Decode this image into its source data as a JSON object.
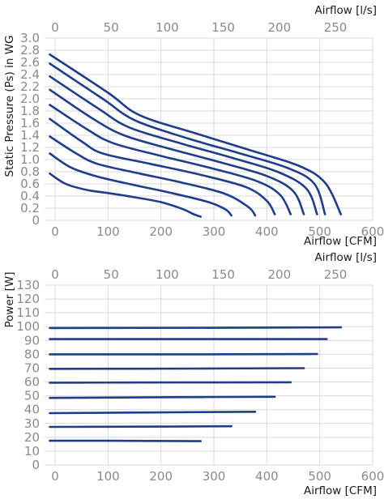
{
  "chart_data": [
    {
      "type": "line",
      "title": "",
      "xlabel": "Airflow [CFM]",
      "x2label": "Airflow [l/s]",
      "ylabel": "Static Pressure (Ps) in WG",
      "xlim": [
        -20,
        600
      ],
      "ylim": [
        0,
        3.0
      ],
      "x2lim": [
        -9.4,
        283.2
      ],
      "xticks": [
        "0",
        "100",
        "200",
        "300",
        "400",
        "500",
        "600"
      ],
      "x2ticks": [
        "0",
        "50",
        "100",
        "150",
        "200",
        "250"
      ],
      "yticks": [
        "0",
        "0.2",
        "0.4",
        "0.6",
        "0.8",
        "1.0",
        "1.2",
        "1.4",
        "1.6",
        "1.8",
        "2.0",
        "2.2",
        "2.4",
        "2.6",
        "2.8",
        "3.0"
      ],
      "x2tick_values": [
        0,
        50,
        100,
        150,
        200,
        250
      ],
      "grid": true,
      "series": [
        {
          "points": [
            [
              -10,
              0.77
            ],
            [
              20,
              0.6
            ],
            [
              60,
              0.5
            ],
            [
              100,
              0.45
            ],
            [
              150,
              0.38
            ],
            [
              200,
              0.3
            ],
            [
              240,
              0.19
            ],
            [
              262,
              0.1
            ],
            [
              275,
              0.06
            ]
          ]
        },
        {
          "points": [
            [
              -10,
              1.1
            ],
            [
              30,
              0.87
            ],
            [
              80,
              0.72
            ],
            [
              150,
              0.58
            ],
            [
              220,
              0.45
            ],
            [
              290,
              0.3
            ],
            [
              322,
              0.18
            ],
            [
              333,
              0.08
            ]
          ]
        },
        {
          "points": [
            [
              -10,
              1.38
            ],
            [
              40,
              1.1
            ],
            [
              80,
              0.93
            ],
            [
              160,
              0.77
            ],
            [
              240,
              0.62
            ],
            [
              320,
              0.44
            ],
            [
              365,
              0.22
            ],
            [
              378,
              0.08
            ]
          ]
        },
        {
          "points": [
            [
              -10,
              1.67
            ],
            [
              50,
              1.3
            ],
            [
              90,
              1.1
            ],
            [
              180,
              0.93
            ],
            [
              270,
              0.76
            ],
            [
              360,
              0.55
            ],
            [
              400,
              0.32
            ],
            [
              415,
              0.1
            ]
          ]
        },
        {
          "points": [
            [
              -10,
              1.9
            ],
            [
              60,
              1.5
            ],
            [
              110,
              1.27
            ],
            [
              200,
              1.06
            ],
            [
              290,
              0.87
            ],
            [
              380,
              0.65
            ],
            [
              425,
              0.42
            ],
            [
              445,
              0.1
            ]
          ]
        },
        {
          "points": [
            [
              -10,
              2.15
            ],
            [
              70,
              1.68
            ],
            [
              130,
              1.4
            ],
            [
              220,
              1.17
            ],
            [
              310,
              0.96
            ],
            [
              400,
              0.73
            ],
            [
              450,
              0.48
            ],
            [
              470,
              0.1
            ]
          ]
        },
        {
          "points": [
            [
              -10,
              2.37
            ],
            [
              80,
              1.85
            ],
            [
              140,
              1.53
            ],
            [
              240,
              1.26
            ],
            [
              330,
              1.04
            ],
            [
              420,
              0.8
            ],
            [
              475,
              0.52
            ],
            [
              495,
              0.1
            ]
          ]
        },
        {
          "points": [
            [
              -10,
              2.58
            ],
            [
              90,
              2.0
            ],
            [
              150,
              1.65
            ],
            [
              250,
              1.35
            ],
            [
              350,
              1.1
            ],
            [
              440,
              0.86
            ],
            [
              490,
              0.6
            ],
            [
              510,
              0.1
            ]
          ]
        },
        {
          "points": [
            [
              -10,
              2.73
            ],
            [
              100,
              2.1
            ],
            [
              160,
              1.73
            ],
            [
              270,
              1.42
            ],
            [
              370,
              1.15
            ],
            [
              460,
              0.9
            ],
            [
              510,
              0.62
            ],
            [
              540,
              0.1
            ]
          ]
        }
      ]
    },
    {
      "type": "line",
      "title": "",
      "xlabel": "Airflow [CFM]",
      "x2label": "Airflow [l/s]",
      "ylabel": "Power [W]",
      "xlim": [
        -20,
        600
      ],
      "ylim": [
        0,
        130
      ],
      "x2lim": [
        -9.4,
        283.2
      ],
      "xticks": [
        "0",
        "100",
        "200",
        "300",
        "400",
        "500",
        "600"
      ],
      "x2ticks": [
        "0",
        "50",
        "100",
        "150",
        "200",
        "250"
      ],
      "yticks": [
        "0",
        "10",
        "20",
        "30",
        "40",
        "50",
        "60",
        "70",
        "80",
        "90",
        "100",
        "110",
        "120",
        "130"
      ],
      "x2tick_values": [
        0,
        50,
        100,
        150,
        200,
        250
      ],
      "grid": true,
      "series": [
        {
          "points": [
            [
              -10,
              17.5
            ],
            [
              100,
              17.5
            ],
            [
              275,
              17.2
            ]
          ]
        },
        {
          "points": [
            [
              -10,
              27.5
            ],
            [
              150,
              27.7
            ],
            [
              333,
              28
            ]
          ]
        },
        {
          "points": [
            [
              -10,
              37.5
            ],
            [
              200,
              38
            ],
            [
              378,
              38.5
            ]
          ]
        },
        {
          "points": [
            [
              -10,
              48.5
            ],
            [
              220,
              49
            ],
            [
              415,
              49.3
            ]
          ]
        },
        {
          "points": [
            [
              -10,
              59.5
            ],
            [
              240,
              59.7
            ],
            [
              445,
              59.8
            ]
          ]
        },
        {
          "points": [
            [
              -10,
              69.5
            ],
            [
              260,
              69.7
            ],
            [
              470,
              70
            ]
          ]
        },
        {
          "points": [
            [
              -10,
              80
            ],
            [
              280,
              80
            ],
            [
              495,
              80.2
            ]
          ]
        },
        {
          "points": [
            [
              -10,
              91
            ],
            [
              300,
              91
            ],
            [
              513,
              91
            ]
          ]
        },
        {
          "points": [
            [
              -10,
              99
            ],
            [
              320,
              99.2
            ],
            [
              540,
              99.5
            ]
          ]
        }
      ]
    }
  ]
}
